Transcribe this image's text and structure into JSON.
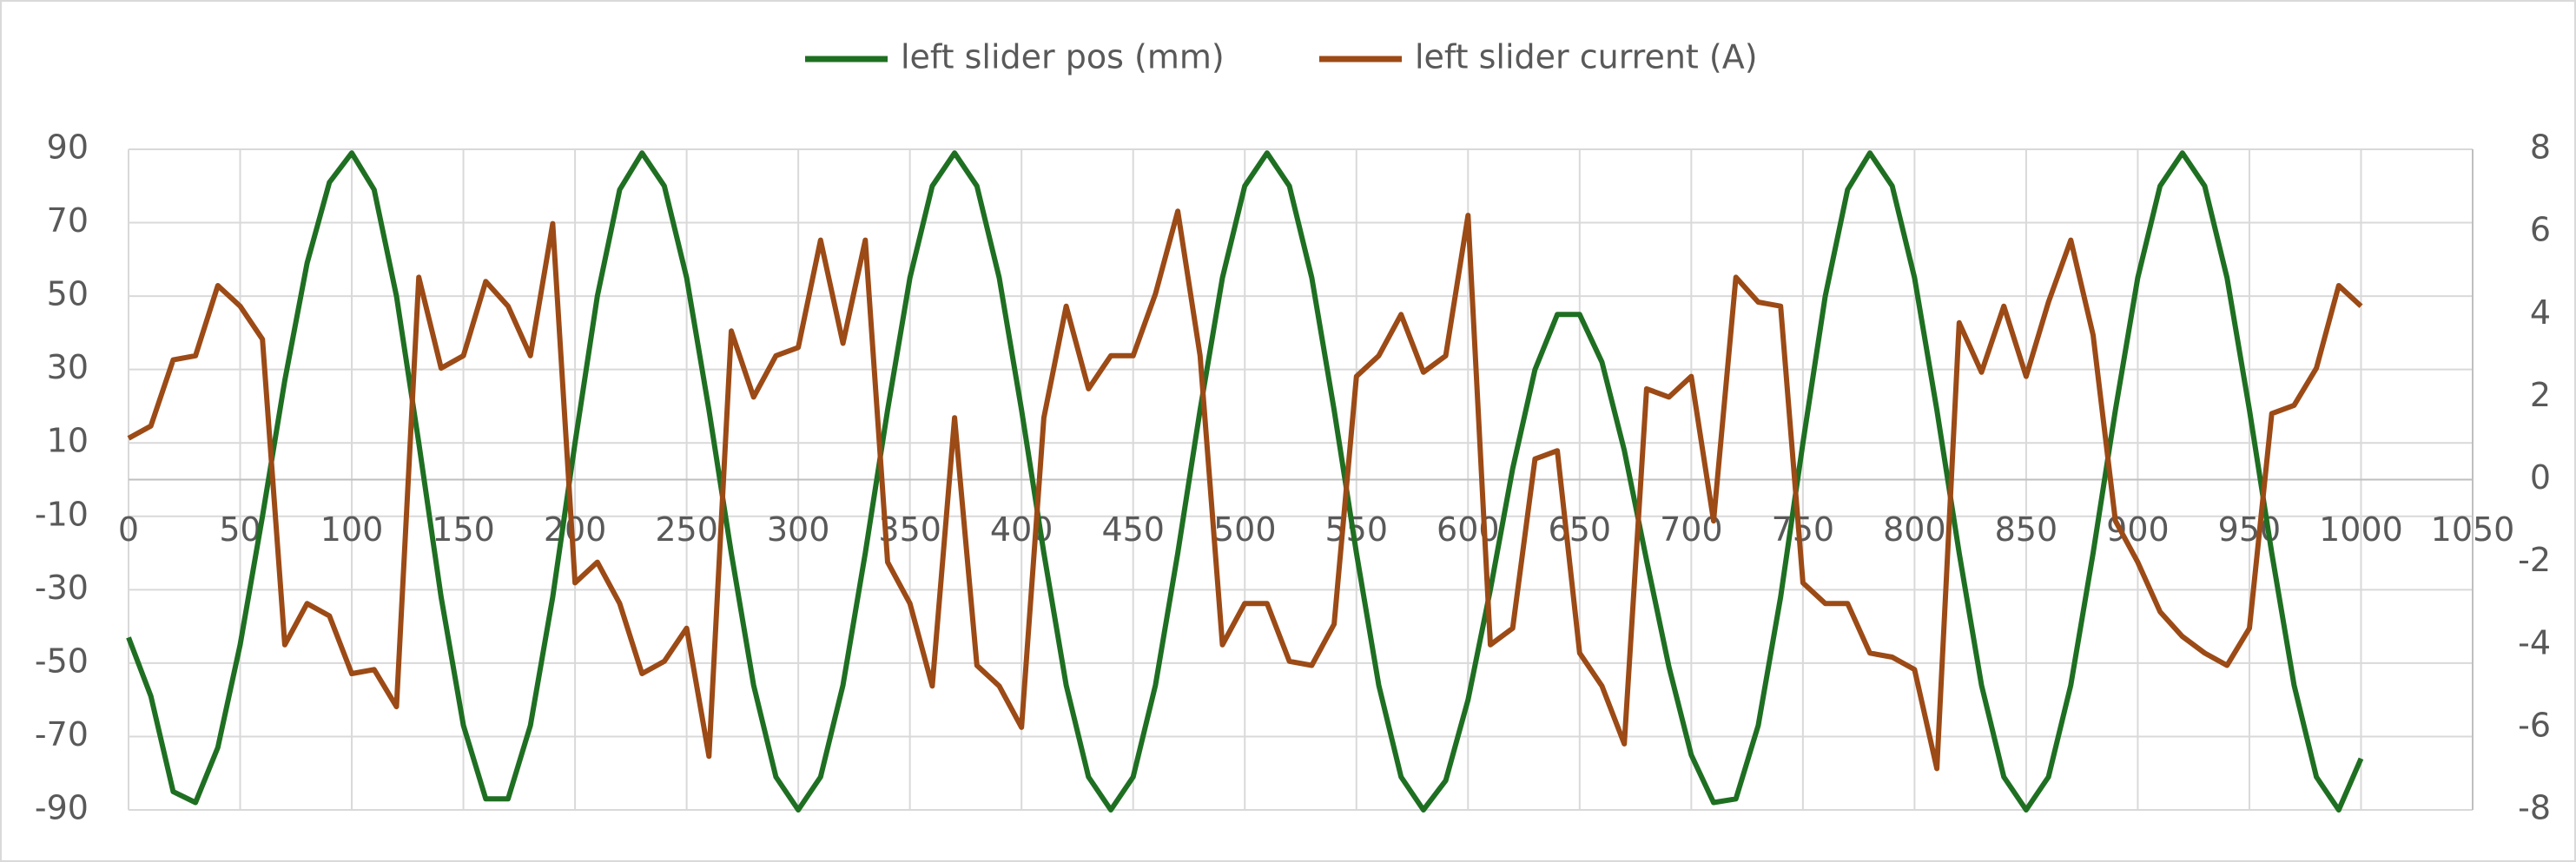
{
  "chart_data": {
    "type": "line",
    "x": [
      0,
      10,
      20,
      30,
      40,
      50,
      60,
      70,
      80,
      90,
      100,
      110,
      120,
      130,
      140,
      150,
      160,
      170,
      180,
      190,
      200,
      210,
      220,
      230,
      240,
      250,
      260,
      270,
      280,
      290,
      300,
      310,
      320,
      330,
      340,
      350,
      360,
      370,
      380,
      390,
      400,
      410,
      420,
      430,
      440,
      450,
      460,
      470,
      480,
      490,
      500,
      510,
      520,
      530,
      540,
      550,
      560,
      570,
      580,
      590,
      600,
      610,
      620,
      630,
      640,
      650,
      660,
      670,
      680,
      690,
      700,
      710,
      720,
      730,
      740,
      750,
      760,
      770,
      780,
      790,
      800,
      810,
      820,
      830,
      840,
      850,
      860,
      870,
      880,
      890,
      900,
      910,
      920,
      930,
      940,
      950,
      960,
      970,
      980,
      990,
      1000
    ],
    "series": [
      {
        "name": "left slider pos (mm)",
        "color": "#1f6f22",
        "axis": "y",
        "values": [
          -43,
          -59,
          -85,
          -88,
          -73,
          -45,
          -10,
          27,
          59,
          81,
          89,
          79,
          50,
          10,
          -32,
          -67,
          -87,
          -87,
          -67,
          -32,
          10,
          50,
          79,
          89,
          80,
          55,
          19,
          -20,
          -56,
          -81,
          -90,
          -81,
          -56,
          -20,
          19,
          55,
          80,
          89,
          80,
          55,
          19,
          -20,
          -56,
          -81,
          -90,
          -81,
          -56,
          -20,
          19,
          55,
          80,
          89,
          80,
          55,
          19,
          -20,
          -56,
          -81,
          -90,
          -82,
          -60,
          -30,
          3,
          30,
          45,
          45,
          32,
          8,
          -22,
          -51,
          -75,
          -88,
          -87,
          -67,
          -32,
          10,
          50,
          79,
          89,
          80,
          55,
          19,
          -20,
          -56,
          -81,
          -90,
          -81,
          -56,
          -20,
          19,
          55,
          80,
          89,
          80,
          55,
          19,
          -20,
          -56,
          -81,
          -90,
          -76
        ]
      },
      {
        "name": "left slider current (A)",
        "color": "#9c4a16",
        "axis": "y2",
        "values": [
          1.0,
          1.3,
          2.9,
          3.0,
          4.7,
          4.2,
          3.4,
          -4.0,
          -3.0,
          -3.3,
          -4.7,
          -4.6,
          -5.5,
          4.9,
          2.7,
          3.0,
          4.8,
          4.2,
          3.0,
          6.2,
          -2.5,
          -2.0,
          -3.0,
          -4.7,
          -4.4,
          -3.6,
          -6.7,
          3.6,
          2.0,
          3.0,
          3.2,
          5.8,
          3.3,
          5.8,
          -2.0,
          -3.0,
          -5.0,
          1.5,
          -4.5,
          -5.0,
          -6.0,
          1.5,
          4.2,
          2.2,
          3.0,
          3.0,
          4.5,
          6.5,
          3.0,
          -4.0,
          -3.0,
          -3.0,
          -4.4,
          -4.5,
          -3.5,
          2.5,
          3.0,
          4.0,
          2.6,
          3.0,
          6.4,
          -4.0,
          -3.6,
          0.5,
          0.7,
          -4.2,
          -5.0,
          -6.4,
          2.2,
          2.0,
          2.5,
          -1.0,
          4.9,
          4.3,
          4.2,
          -2.5,
          -3.0,
          -3.0,
          -4.2,
          -4.3,
          -4.6,
          -7.0,
          3.8,
          2.6,
          4.2,
          2.5,
          4.3,
          5.8,
          3.5,
          -1.0,
          -2.0,
          -3.2,
          -3.8,
          -4.2,
          -4.5,
          -3.6,
          1.6,
          1.8,
          2.7,
          4.7,
          4.2
        ]
      }
    ],
    "xlim": [
      0,
      1050
    ],
    "xticks": [
      0,
      50,
      100,
      150,
      200,
      250,
      300,
      350,
      400,
      450,
      500,
      550,
      600,
      650,
      700,
      750,
      800,
      850,
      900,
      950,
      1000,
      1050
    ],
    "ylim": [
      -90,
      90
    ],
    "yticks": [
      -90,
      -70,
      -50,
      -30,
      -10,
      10,
      30,
      50,
      70,
      90
    ],
    "y2lim": [
      -8,
      8
    ],
    "y2ticks": [
      -8,
      -6,
      -4,
      -2,
      0,
      2,
      4,
      6,
      8
    ],
    "grid": true,
    "legend": "top"
  }
}
